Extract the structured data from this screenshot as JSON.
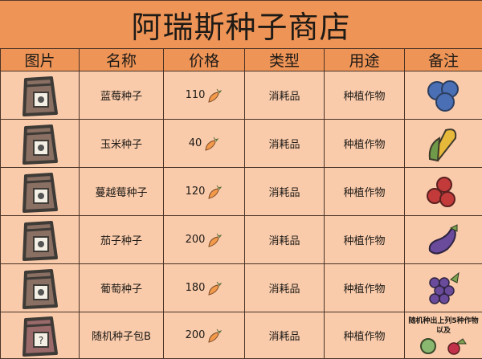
{
  "title": "阿瑞斯种子商店",
  "headers": [
    "图片",
    "名称",
    "价格",
    "类型",
    "用途",
    "备注"
  ],
  "currency_icon": "carrot-icon",
  "rows": [
    {
      "name": "蓝莓种子",
      "price": "110",
      "type": "消耗品",
      "use": "种植作物",
      "note_icon": "blueberry-icon",
      "bag_color": "#8a6f63"
    },
    {
      "name": "玉米种子",
      "price": "40",
      "type": "消耗品",
      "use": "种植作物",
      "note_icon": "corn-icon",
      "bag_color": "#8a6f63"
    },
    {
      "name": "蔓越莓种子",
      "price": "120",
      "type": "消耗品",
      "use": "种植作物",
      "note_icon": "cranberry-icon",
      "bag_color": "#8a6f63"
    },
    {
      "name": "茄子种子",
      "price": "200",
      "type": "消耗品",
      "use": "种植作物",
      "note_icon": "eggplant-icon",
      "bag_color": "#8a6f63"
    },
    {
      "name": "葡萄种子",
      "price": "180",
      "type": "消耗品",
      "use": "种植作物",
      "note_icon": "grape-icon",
      "bag_color": "#8a6f63"
    },
    {
      "name": "随机种子包B",
      "price": "200",
      "type": "消耗品",
      "use": "种植作物",
      "note": "随机种出上列5种作物以及",
      "note_icons": [
        "artichoke-icon",
        "radish-icon"
      ],
      "bag_color": "#9a6a6a"
    }
  ]
}
